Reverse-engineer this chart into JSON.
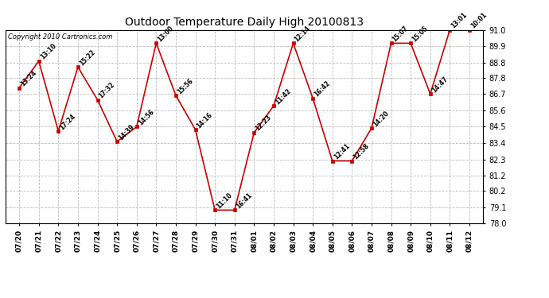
{
  "title": "Outdoor Temperature Daily High 20100813",
  "copyright": "Copyright 2010 Cartronics.com",
  "x_labels": [
    "07/20",
    "07/21",
    "07/22",
    "07/23",
    "07/24",
    "07/25",
    "07/26",
    "07/27",
    "07/28",
    "07/29",
    "07/30",
    "07/31",
    "08/01",
    "08/02",
    "08/03",
    "08/04",
    "08/05",
    "08/06",
    "08/07",
    "08/08",
    "08/09",
    "08/10",
    "08/11",
    "08/12"
  ],
  "y_values": [
    87.1,
    88.9,
    84.2,
    88.5,
    86.3,
    83.5,
    84.5,
    90.1,
    86.6,
    84.3,
    78.9,
    78.9,
    84.1,
    85.9,
    90.1,
    86.4,
    82.2,
    82.2,
    84.4,
    90.1,
    90.1,
    86.7,
    91.0,
    91.0
  ],
  "point_labels": [
    "13:24",
    "13:10",
    "17:24",
    "15:22",
    "17:32",
    "14:39",
    "14:56",
    "13:00",
    "15:56",
    "14:16",
    "11:10",
    "16:41",
    "12:23",
    "11:42",
    "12:14",
    "16:42",
    "12:41",
    "12:58",
    "14:20",
    "15:07",
    "15:05",
    "14:47",
    "13:01",
    "10:01"
  ],
  "line_color": "#cc0000",
  "marker_color": "#cc0000",
  "background_color": "#ffffff",
  "grid_color": "#bbbbbb",
  "ylim_min": 78.0,
  "ylim_max": 91.0,
  "yticks": [
    78.0,
    79.1,
    80.2,
    81.2,
    82.3,
    83.4,
    84.5,
    85.6,
    86.7,
    87.8,
    88.8,
    89.9,
    91.0
  ]
}
